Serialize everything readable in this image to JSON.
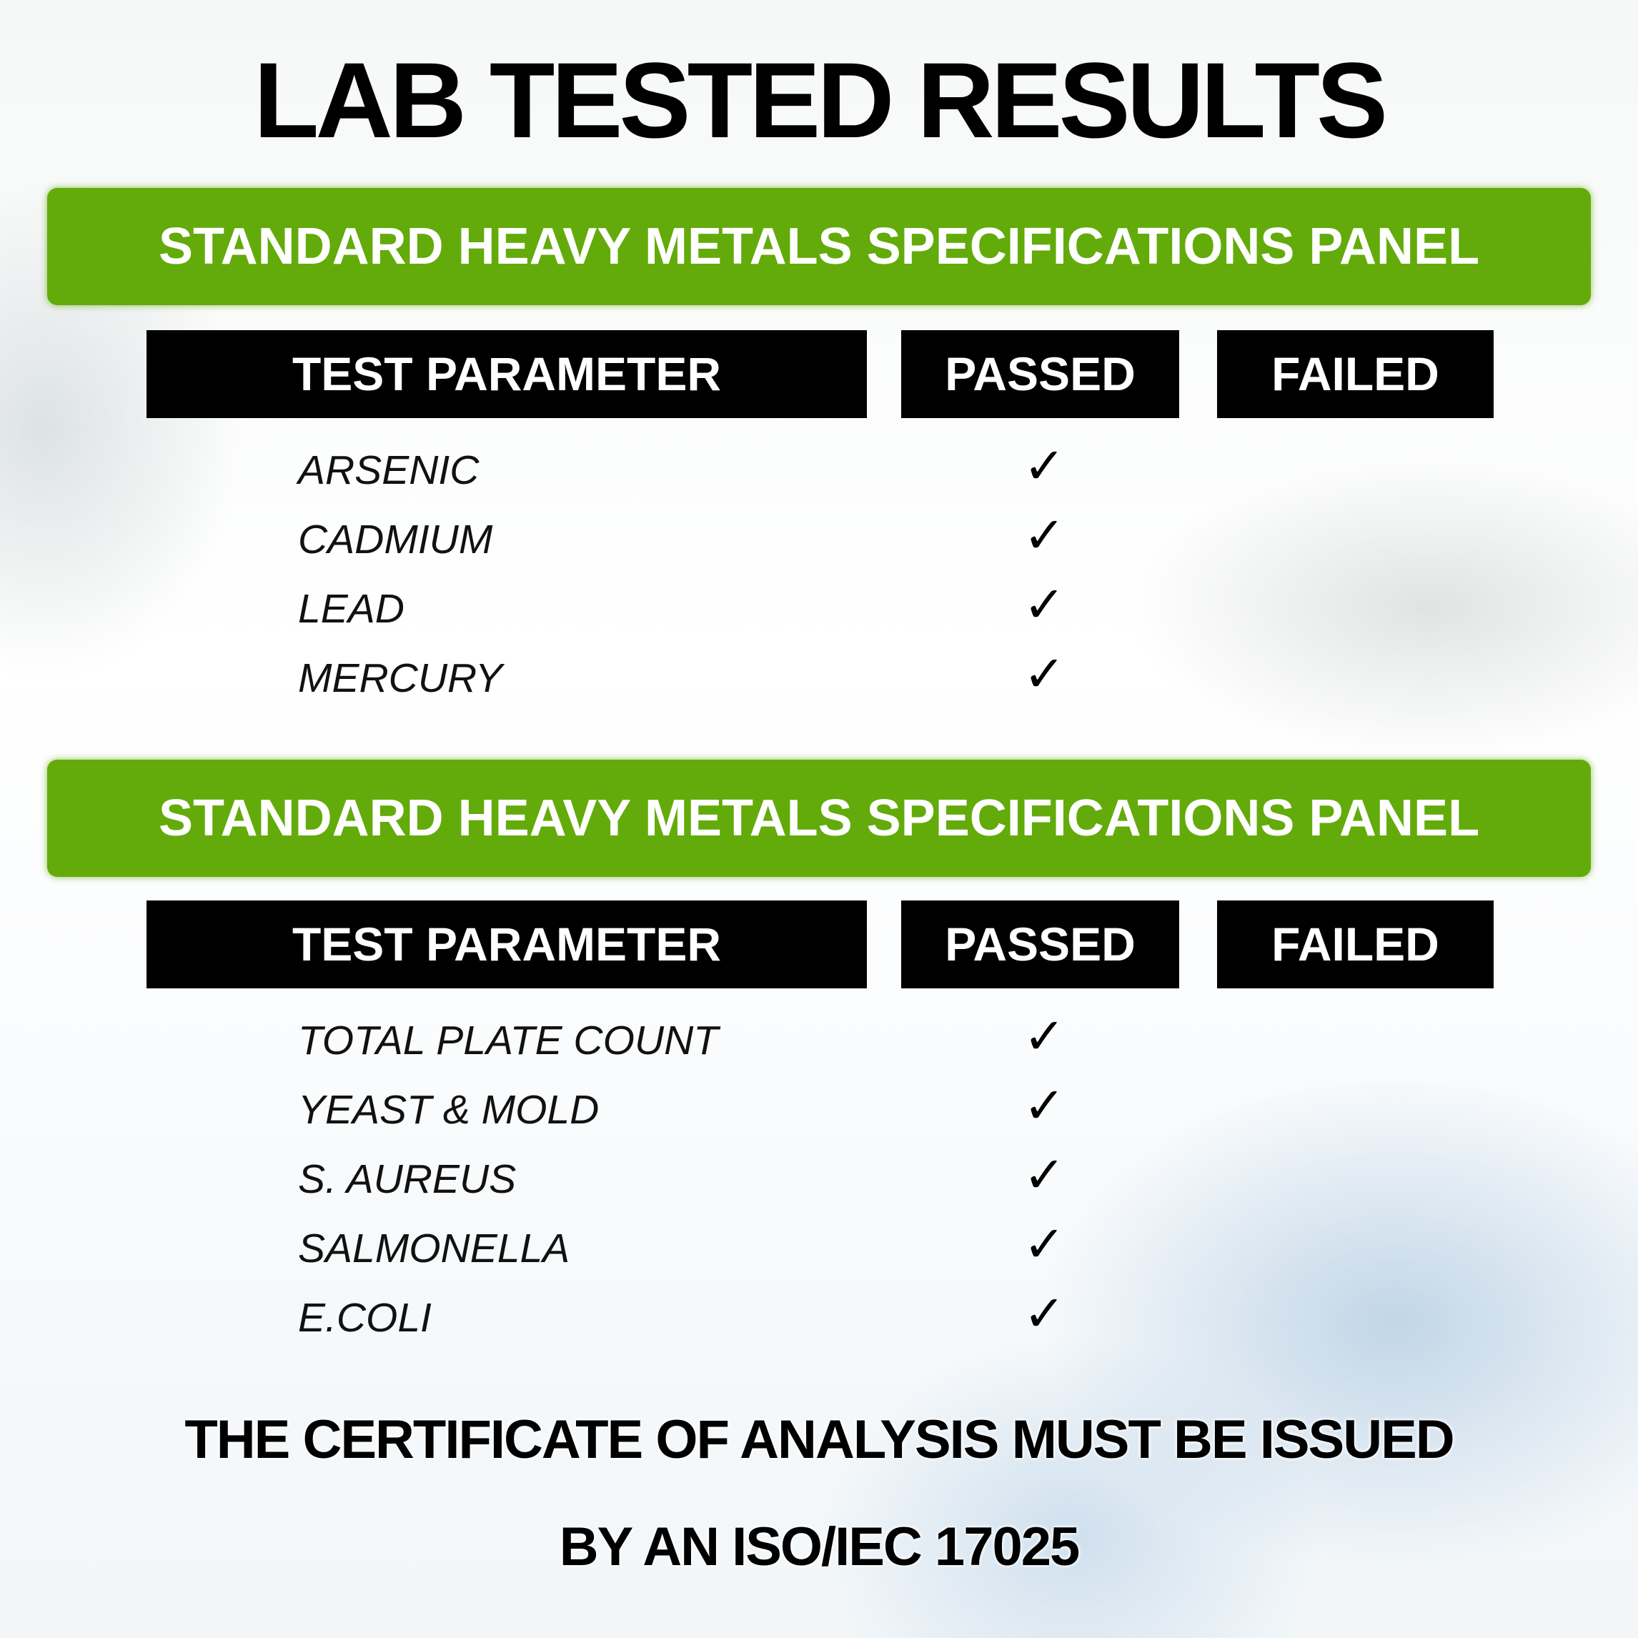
{
  "title": "LAB TESTED RESULTS",
  "colors": {
    "banner": "#63ab0a",
    "header": "#000000"
  },
  "panels": [
    {
      "banner": "STANDARD HEAVY METALS SPECIFICATIONS PANEL",
      "headers": [
        "TEST PARAMETER",
        "PASSED",
        "FAILED"
      ],
      "rows": [
        {
          "name": "ARSENIC",
          "result": "passed"
        },
        {
          "name": "CADMIUM",
          "result": "passed"
        },
        {
          "name": "LEAD",
          "result": "passed"
        },
        {
          "name": "MERCURY",
          "result": "passed"
        }
      ]
    },
    {
      "banner": "STANDARD HEAVY METALS SPECIFICATIONS PANEL",
      "headers": [
        "TEST PARAMETER",
        "PASSED",
        "FAILED"
      ],
      "rows": [
        {
          "name": "TOTAL PLATE COUNT",
          "result": "passed"
        },
        {
          "name": "YEAST & MOLD",
          "result": "passed"
        },
        {
          "name": "S. AUREUS",
          "result": "passed"
        },
        {
          "name": "SALMONELLA",
          "result": "passed"
        },
        {
          "name": "E.COLI",
          "result": "passed"
        }
      ]
    }
  ],
  "check_icon": "checkmark-icon",
  "footer": {
    "line1": "THE CERTIFICATE OF ANALYSIS MUST BE ISSUED",
    "line2": "BY AN ISO/IEC 17025"
  }
}
